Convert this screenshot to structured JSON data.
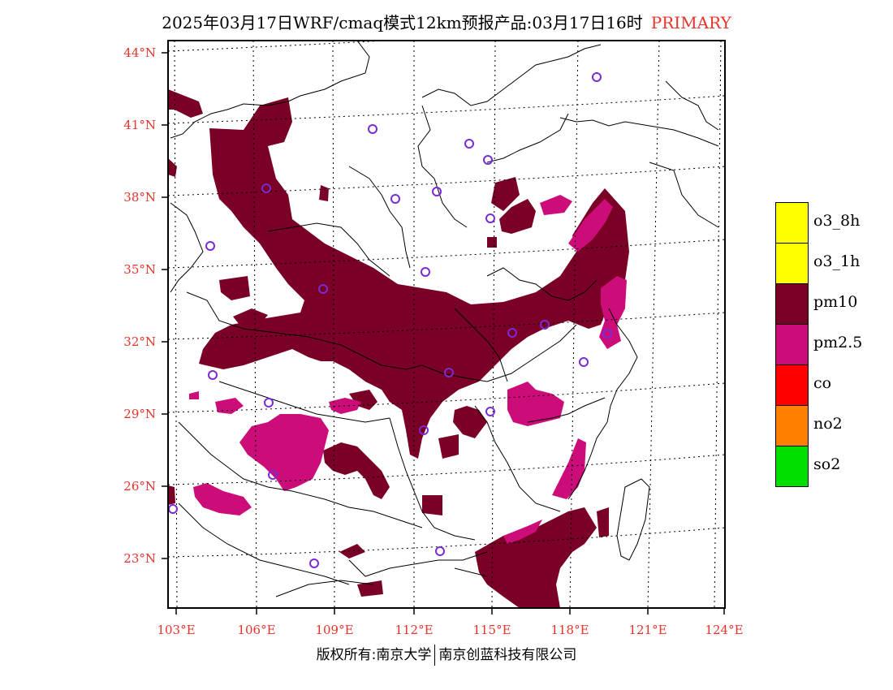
{
  "title": {
    "text": "2025年03月17日WRF/cmaq模式12km预报产品:03月17日16时",
    "tag": "PRIMARY"
  },
  "colors": {
    "accent": "#e8332a",
    "pm10": "#7a0025",
    "pm25": "#cc0d79",
    "o3_8h": "#ffff00",
    "o3_1h": "#ffff00",
    "co": "#ff0000",
    "no2": "#ff7f00",
    "so2": "#00e000",
    "station_marker": "#7a2ad6"
  },
  "lat_labels": [
    "44°N",
    "41°N",
    "38°N",
    "35°N",
    "32°N",
    "29°N",
    "26°N",
    "23°N"
  ],
  "lon_labels": [
    "103°E",
    "106°E",
    "109°E",
    "112°E",
    "115°E",
    "118°E",
    "121°E",
    "124°E"
  ],
  "legend": [
    {
      "label": "o3_8h",
      "color": "#ffff00"
    },
    {
      "label": "o3_1h",
      "color": "#ffff00"
    },
    {
      "label": "pm10",
      "color": "#7a0025"
    },
    {
      "label": "pm2.5",
      "color": "#cc0d79"
    },
    {
      "label": "co",
      "color": "#ff0000"
    },
    {
      "label": "no2",
      "color": "#ff7f00"
    },
    {
      "label": "so2",
      "color": "#00e000"
    }
  ],
  "footer": {
    "left": "版权所有:南京大学",
    "right": "南京创蓝科技有限公司"
  }
}
